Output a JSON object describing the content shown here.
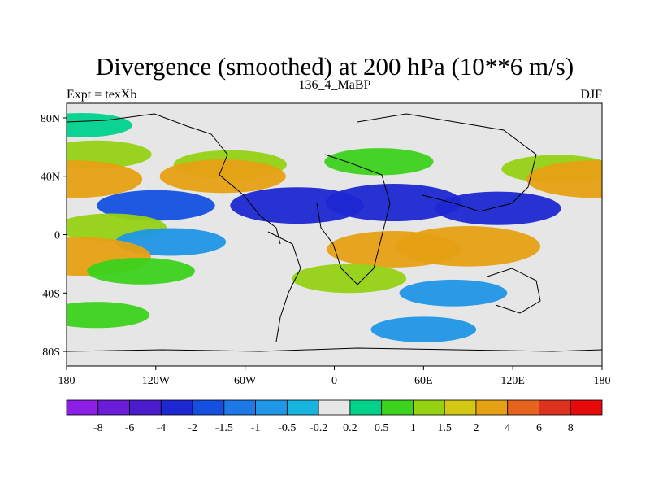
{
  "chart_data": {
    "type": "heatmap",
    "title": "Divergence (smoothed) at 200 hPa (10**6 m/s)",
    "left_string": "Expt = texXb",
    "center_string": "136_4_MaBP",
    "right_string": "DJF",
    "x_ticks": [
      {
        "value": -180,
        "label": "180"
      },
      {
        "value": -120,
        "label": "120W"
      },
      {
        "value": -60,
        "label": "60W"
      },
      {
        "value": 0,
        "label": "0"
      },
      {
        "value": 60,
        "label": "60E"
      },
      {
        "value": 120,
        "label": "120E"
      },
      {
        "value": 180,
        "label": "180"
      }
    ],
    "y_ticks": [
      {
        "value": 80,
        "label": "80N"
      },
      {
        "value": 40,
        "label": "40N"
      },
      {
        "value": 0,
        "label": "0"
      },
      {
        "value": -40,
        "label": "40S"
      },
      {
        "value": -80,
        "label": "80S"
      }
    ],
    "xlim": [
      -180,
      180
    ],
    "ylim": [
      -90,
      90
    ],
    "contour_levels": [
      "-8",
      "-6",
      "-4",
      "-2",
      "-1.5",
      "-1",
      "-0.5",
      "-0.2",
      "0.2",
      "0.5",
      "1",
      "1.5",
      "2",
      "4",
      "6",
      "8"
    ],
    "colors": [
      "#8c1ee6",
      "#6a1cd8",
      "#4b1ccc",
      "#1e28d2",
      "#1450e0",
      "#1e78e6",
      "#2096e6",
      "#18b4e0",
      "#e6e6e6",
      "#00d28c",
      "#3cd21e",
      "#96d214",
      "#d2c814",
      "#e6a014",
      "#e6641e",
      "#dc321e",
      "#e60a0a"
    ],
    "bands": [
      {
        "lat": 75,
        "lon": -170,
        "value": 0.3
      },
      {
        "lat": 55,
        "lon": -160,
        "value": 1.0
      },
      {
        "lat": 48,
        "lon": -70,
        "value": 1.2
      },
      {
        "lat": 50,
        "lon": 30,
        "value": 0.9
      },
      {
        "lat": 45,
        "lon": 150,
        "value": 1.1
      },
      {
        "lat": 38,
        "lon": -175,
        "value": 3.0
      },
      {
        "lat": 38,
        "lon": 175,
        "value": 3.0
      },
      {
        "lat": 40,
        "lon": -75,
        "value": 2.2
      },
      {
        "lat": 20,
        "lon": -120,
        "value": -1.6
      },
      {
        "lat": 20,
        "lon": -25,
        "value": -2.8
      },
      {
        "lat": 22,
        "lon": 40,
        "value": -3.0
      },
      {
        "lat": 18,
        "lon": 110,
        "value": -2.2
      },
      {
        "lat": 5,
        "lon": -150,
        "value": 1.0
      },
      {
        "lat": -5,
        "lon": -110,
        "value": -1.0
      },
      {
        "lat": -10,
        "lon": 40,
        "value": 2.8
      },
      {
        "lat": -8,
        "lon": 90,
        "value": 3.6
      },
      {
        "lat": -15,
        "lon": -170,
        "value": 3.2
      },
      {
        "lat": -25,
        "lon": -130,
        "value": 0.8
      },
      {
        "lat": -30,
        "lon": 10,
        "value": 1.3
      },
      {
        "lat": -40,
        "lon": 80,
        "value": -0.8
      },
      {
        "lat": -55,
        "lon": -160,
        "value": 0.7
      },
      {
        "lat": -65,
        "lon": 60,
        "value": -0.6
      }
    ]
  },
  "colorbar": {
    "labels": [
      "-8",
      "-6",
      "-4",
      "-2",
      "-1.5",
      "-1",
      "-0.5",
      "-0.2",
      "0.2",
      "0.5",
      "1",
      "1.5",
      "2",
      "4",
      "6",
      "8"
    ]
  }
}
